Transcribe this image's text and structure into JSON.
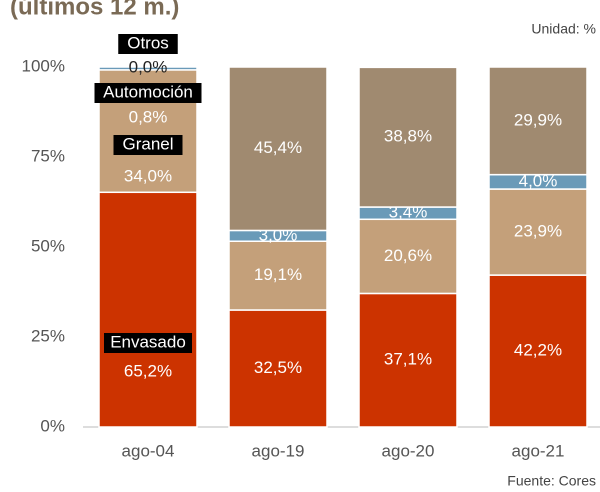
{
  "chart_data": {
    "type": "stacked_bar",
    "title": "(últimos 12 m.)",
    "unit_note": "Unidad: %",
    "source_note": "Fuente: Cores",
    "categories": [
      "ago-04",
      "ago-19",
      "ago-20",
      "ago-21"
    ],
    "series": [
      {
        "name": "Envasado",
        "color": "#cc3300",
        "values": [
          65.2,
          32.5,
          37.1,
          42.2
        ],
        "value_labels": [
          "65,2%",
          "32,5%",
          "37,1%",
          "42,2%"
        ]
      },
      {
        "name": "Granel",
        "color": "#c4a07a",
        "values": [
          34.0,
          19.1,
          20.6,
          23.9
        ],
        "value_labels": [
          "34,0%",
          "19,1%",
          "20,6%",
          "23,9%"
        ]
      },
      {
        "name": "Automoción",
        "color": "#6a9ab8",
        "values": [
          0.8,
          3.0,
          3.4,
          4.0
        ],
        "value_labels": [
          "0,8%",
          "3,0%",
          "3,4%",
          "4,0%"
        ]
      },
      {
        "name": "Otros",
        "color": "#a08a70",
        "values": [
          0.0,
          45.4,
          38.8,
          29.9
        ],
        "value_labels": [
          "0,0%",
          "45,4%",
          "38,8%",
          "29,9%"
        ]
      }
    ],
    "ylim": [
      0,
      100
    ],
    "yticks": [
      {
        "value": 0,
        "label": "0%"
      },
      {
        "value": 25,
        "label": "25%"
      },
      {
        "value": 50,
        "label": "50%"
      },
      {
        "value": 75,
        "label": "75%"
      },
      {
        "value": 100,
        "label": "100%"
      }
    ]
  }
}
